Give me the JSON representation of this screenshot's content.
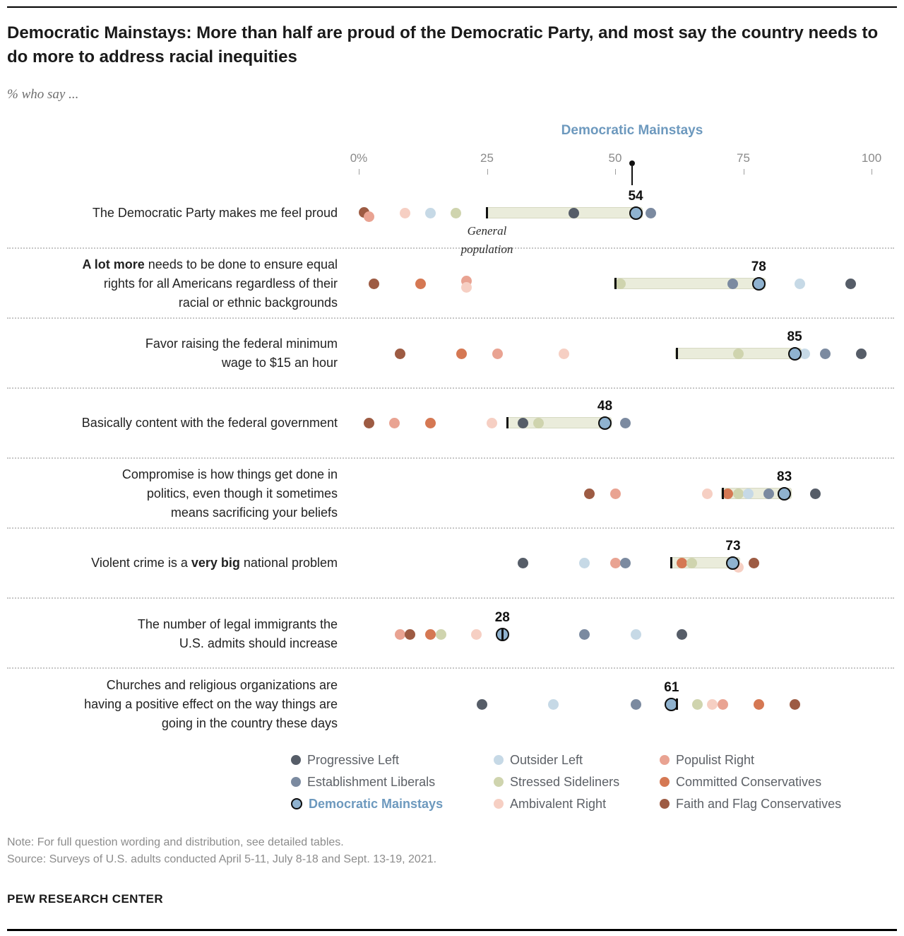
{
  "page": {
    "title": "Democratic Mainstays: More than half are proud of the Democratic Party, and most say the country needs to do more to address racial inequities",
    "subtitle": "% who say ...",
    "note": "Note: For full question wording and distribution, see detailed tables.",
    "source": "Source: Surveys of U.S. adults conducted April 5-11, July 8-18 and Sept. 13-19, 2021.",
    "footer": "PEW RESEARCH CENTER"
  },
  "colors": {
    "accent": "#6d99be",
    "bar_fill": "#eaecdb",
    "bar_border": "#d6d9c2",
    "tick": "#111111"
  },
  "chart_data": {
    "type": "scatter",
    "title": "Democratic Mainstays: More than half are proud of the Democratic Party, and most say the country needs to do more to address racial inequities",
    "xlabel": "% who say",
    "xlim": [
      0,
      100
    ],
    "axis": {
      "ticks": [
        {
          "label": "0%",
          "value": 0
        },
        {
          "label": "25",
          "value": 25
        },
        {
          "label": "50",
          "value": 50
        },
        {
          "label": "75",
          "value": 75
        },
        {
          "label": "100",
          "value": 100
        }
      ]
    },
    "annotations": {
      "pointer_label": "Democratic Mainstays",
      "gen_pop_label": "General population"
    },
    "highlight_group": "democratic_mainstays",
    "groups": {
      "progressive_left": {
        "label": "Progressive Left",
        "color": "#565d68"
      },
      "establishment_liberals": {
        "label": "Establishment Liberals",
        "color": "#7b8aa0"
      },
      "democratic_mainstays": {
        "label": "Democratic Mainstays",
        "color": "#8fb2cf"
      },
      "outsider_left": {
        "label": "Outsider Left",
        "color": "#c6d9e6"
      },
      "stressed_sideliners": {
        "label": "Stressed Sideliners",
        "color": "#cfd4ae"
      },
      "ambivalent_right": {
        "label": "Ambivalent Right",
        "color": "#f6cfc3"
      },
      "populist_right": {
        "label": "Populist Right",
        "color": "#e9a392"
      },
      "committed_conservatives": {
        "label": "Committed Conservatives",
        "color": "#d57853"
      },
      "faith_flag_conservatives": {
        "label": "Faith and Flag Conservatives",
        "color": "#9d5b43"
      }
    },
    "rows": [
      {
        "label_parts": [
          {
            "t": "The Democratic Party makes me feel proud",
            "b": false
          }
        ],
        "dm_value": 54,
        "gen_pop": 25,
        "show_gen_pop_label": true,
        "points": [
          {
            "g": "faith_flag_conservatives",
            "v": 1,
            "dy": -1
          },
          {
            "g": "populist_right",
            "v": 2,
            "dy": 5
          },
          {
            "g": "ambivalent_right",
            "v": 9
          },
          {
            "g": "outsider_left",
            "v": 14
          },
          {
            "g": "stressed_sideliners",
            "v": 19
          },
          {
            "g": "progressive_left",
            "v": 42
          },
          {
            "g": "establishment_liberals",
            "v": 57
          },
          {
            "g": "democratic_mainstays",
            "v": 54
          }
        ]
      },
      {
        "label_parts": [
          {
            "t": "A lot more",
            "b": true
          },
          {
            "t": " needs to be done to ensure equal rights for all Americans regardless of their racial or ethnic backgrounds",
            "b": false
          }
        ],
        "dm_value": 78,
        "gen_pop": 50,
        "show_gen_pop_label": false,
        "points": [
          {
            "g": "faith_flag_conservatives",
            "v": 3
          },
          {
            "g": "committed_conservatives",
            "v": 12
          },
          {
            "g": "populist_right",
            "v": 21,
            "dy": -4
          },
          {
            "g": "ambivalent_right",
            "v": 21,
            "dy": 5
          },
          {
            "g": "stressed_sideliners",
            "v": 51
          },
          {
            "g": "establishment_liberals",
            "v": 73
          },
          {
            "g": "outsider_left",
            "v": 86
          },
          {
            "g": "progressive_left",
            "v": 96
          },
          {
            "g": "democratic_mainstays",
            "v": 78
          }
        ]
      },
      {
        "label_parts": [
          {
            "t": "Favor raising the federal minimum wage to $15 an hour",
            "b": false
          }
        ],
        "dm_value": 85,
        "gen_pop": 62,
        "show_gen_pop_label": false,
        "points": [
          {
            "g": "faith_flag_conservatives",
            "v": 8
          },
          {
            "g": "committed_conservatives",
            "v": 20
          },
          {
            "g": "populist_right",
            "v": 27
          },
          {
            "g": "ambivalent_right",
            "v": 40
          },
          {
            "g": "stressed_sideliners",
            "v": 74
          },
          {
            "g": "outsider_left",
            "v": 87
          },
          {
            "g": "establishment_liberals",
            "v": 91
          },
          {
            "g": "progressive_left",
            "v": 98
          },
          {
            "g": "democratic_mainstays",
            "v": 85
          }
        ]
      },
      {
        "label_parts": [
          {
            "t": "Basically content with the federal government",
            "b": false
          }
        ],
        "dm_value": 48,
        "gen_pop": 29,
        "show_gen_pop_label": false,
        "points": [
          {
            "g": "faith_flag_conservatives",
            "v": 2
          },
          {
            "g": "populist_right",
            "v": 7
          },
          {
            "g": "committed_conservatives",
            "v": 14
          },
          {
            "g": "ambivalent_right",
            "v": 26
          },
          {
            "g": "progressive_left",
            "v": 32
          },
          {
            "g": "stressed_sideliners",
            "v": 35
          },
          {
            "g": "establishment_liberals",
            "v": 52
          },
          {
            "g": "democratic_mainstays",
            "v": 48
          }
        ]
      },
      {
        "label_parts": [
          {
            "t": "Compromise is how things get done in politics, even though it sometimes means sacrificing your beliefs",
            "b": false
          }
        ],
        "dm_value": 83,
        "gen_pop": 71,
        "show_gen_pop_label": false,
        "points": [
          {
            "g": "faith_flag_conservatives",
            "v": 45
          },
          {
            "g": "populist_right",
            "v": 50
          },
          {
            "g": "ambivalent_right",
            "v": 68
          },
          {
            "g": "committed_conservatives",
            "v": 72
          },
          {
            "g": "stressed_sideliners",
            "v": 74
          },
          {
            "g": "outsider_left",
            "v": 76
          },
          {
            "g": "establishment_liberals",
            "v": 80
          },
          {
            "g": "progressive_left",
            "v": 89
          },
          {
            "g": "democratic_mainstays",
            "v": 83
          }
        ]
      },
      {
        "label_parts": [
          {
            "t": "Violent crime is a ",
            "b": false
          },
          {
            "t": "very big",
            "b": true
          },
          {
            "t": " national problem",
            "b": false
          }
        ],
        "dm_value": 73,
        "gen_pop": 61,
        "show_gen_pop_label": false,
        "points": [
          {
            "g": "progressive_left",
            "v": 32
          },
          {
            "g": "outsider_left",
            "v": 44
          },
          {
            "g": "populist_right",
            "v": 50
          },
          {
            "g": "establishment_liberals",
            "v": 52
          },
          {
            "g": "committed_conservatives",
            "v": 63
          },
          {
            "g": "stressed_sideliners",
            "v": 65
          },
          {
            "g": "ambivalent_right",
            "v": 74,
            "dy": 6
          },
          {
            "g": "faith_flag_conservatives",
            "v": 77
          },
          {
            "g": "democratic_mainstays",
            "v": 73
          }
        ]
      },
      {
        "label_parts": [
          {
            "t": "The number of legal immigrants the U.S. admits should increase",
            "b": false
          }
        ],
        "dm_value": 28,
        "gen_pop": 28,
        "show_gen_pop_label": false,
        "points": [
          {
            "g": "populist_right",
            "v": 8
          },
          {
            "g": "faith_flag_conservatives",
            "v": 10
          },
          {
            "g": "committed_conservatives",
            "v": 14
          },
          {
            "g": "stressed_sideliners",
            "v": 16
          },
          {
            "g": "ambivalent_right",
            "v": 23
          },
          {
            "g": "establishment_liberals",
            "v": 44
          },
          {
            "g": "outsider_left",
            "v": 54
          },
          {
            "g": "progressive_left",
            "v": 63
          },
          {
            "g": "democratic_mainstays",
            "v": 28
          }
        ]
      },
      {
        "label_parts": [
          {
            "t": "Churches and religious organizations are having a positive effect on the way things are going in the country these days",
            "b": false
          }
        ],
        "dm_value": 61,
        "gen_pop": 62,
        "show_gen_pop_label": false,
        "points": [
          {
            "g": "progressive_left",
            "v": 24
          },
          {
            "g": "outsider_left",
            "v": 38
          },
          {
            "g": "establishment_liberals",
            "v": 54
          },
          {
            "g": "stressed_sideliners",
            "v": 66
          },
          {
            "g": "ambivalent_right",
            "v": 69
          },
          {
            "g": "populist_right",
            "v": 71
          },
          {
            "g": "committed_conservatives",
            "v": 78
          },
          {
            "g": "faith_flag_conservatives",
            "v": 85
          },
          {
            "g": "democratic_mainstays",
            "v": 61
          }
        ]
      }
    ]
  },
  "legend": {
    "columns": [
      [
        {
          "label": "Progressive Left",
          "group": "progressive_left",
          "highlight": false
        },
        {
          "label": "Establishment Liberals",
          "group": "establishment_liberals",
          "highlight": false
        },
        {
          "label": "Democratic Mainstays",
          "group": "democratic_mainstays",
          "highlight": true
        }
      ],
      [
        {
          "label": "Outsider Left",
          "group": "outsider_left",
          "highlight": false
        },
        {
          "label": "Stressed Sideliners",
          "group": "stressed_sideliners",
          "highlight": false
        },
        {
          "label": "Ambivalent Right",
          "group": "ambivalent_right",
          "highlight": false
        }
      ],
      [
        {
          "label": "Populist Right",
          "group": "populist_right",
          "highlight": false
        },
        {
          "label": "Committed Conservatives",
          "group": "committed_conservatives",
          "highlight": false
        },
        {
          "label": "Faith and Flag Conservatives",
          "group": "faith_flag_conservatives",
          "highlight": false
        }
      ]
    ]
  }
}
